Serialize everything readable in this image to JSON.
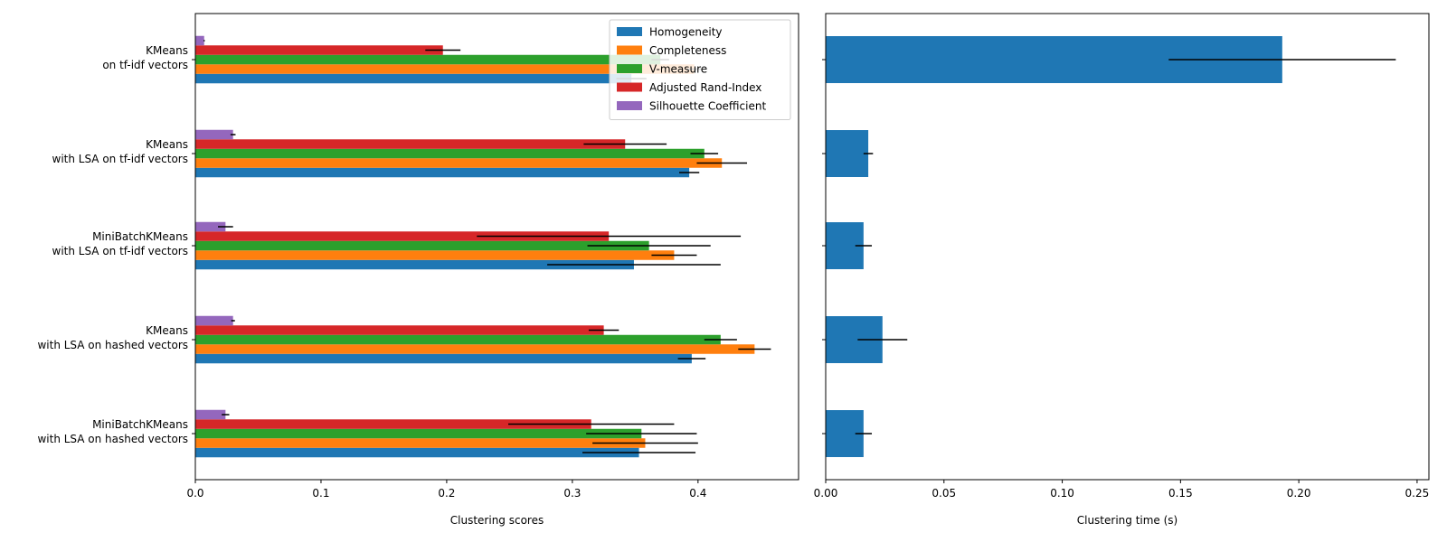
{
  "chart_data": [
    {
      "type": "bar",
      "orientation": "horizontal",
      "xlabel": "Clustering scores",
      "ylabel": "",
      "xlim": [
        0,
        0.48
      ],
      "xticks": [
        0.0,
        0.1,
        0.2,
        0.3,
        0.4
      ],
      "xtick_labels": [
        "0.0",
        "0.1",
        "0.2",
        "0.3",
        "0.4"
      ],
      "grid": false,
      "legend_position": "top-right",
      "categories": [
        [
          "KMeans",
          "on tf-idf vectors"
        ],
        [
          "KMeans",
          "with LSA on tf-idf vectors"
        ],
        [
          "MiniBatchKMeans",
          "with LSA on tf-idf vectors"
        ],
        [
          "KMeans",
          "with LSA on hashed vectors"
        ],
        [
          "MiniBatchKMeans",
          "with LSA on hashed vectors"
        ]
      ],
      "series": [
        {
          "name": "Homogeneity",
          "color": "#1f77b4",
          "values": [
            0.347,
            0.393,
            0.349,
            0.395,
            0.353
          ],
          "errors": [
            0.012,
            0.008,
            0.069,
            0.011,
            0.045
          ]
        },
        {
          "name": "Completeness",
          "color": "#ff7f0e",
          "values": [
            0.397,
            0.419,
            0.381,
            0.445,
            0.358
          ],
          "errors": [
            0.006,
            0.02,
            0.018,
            0.013,
            0.042
          ]
        },
        {
          "name": "V-measure",
          "color": "#2ca02c",
          "values": [
            0.37,
            0.405,
            0.361,
            0.418,
            0.355
          ],
          "errors": [
            0.007,
            0.011,
            0.049,
            0.013,
            0.044
          ]
        },
        {
          "name": "Adjusted Rand-Index",
          "color": "#d62728",
          "values": [
            0.197,
            0.342,
            0.329,
            0.325,
            0.315
          ],
          "errors": [
            0.014,
            0.033,
            0.105,
            0.012,
            0.066
          ]
        },
        {
          "name": "Silhouette Coefficient",
          "color": "#9467bd",
          "values": [
            0.007,
            0.03,
            0.024,
            0.03,
            0.024
          ],
          "errors": [
            0.0005,
            0.002,
            0.006,
            0.0015,
            0.003
          ]
        }
      ]
    },
    {
      "type": "bar",
      "orientation": "horizontal",
      "xlabel": "Clustering time (s)",
      "ylabel": "",
      "xlim": [
        0,
        0.255
      ],
      "xticks": [
        0.0,
        0.05,
        0.1,
        0.15,
        0.2,
        0.25
      ],
      "xtick_labels": [
        "0.00",
        "0.05",
        "0.10",
        "0.15",
        "0.20",
        "0.25"
      ],
      "grid": false,
      "series": [
        {
          "color": "#1f77b4",
          "values": [
            0.193,
            0.018,
            0.016,
            0.024,
            0.016
          ],
          "errors": [
            0.048,
            0.002,
            0.0035,
            0.0105,
            0.0035
          ]
        }
      ]
    }
  ]
}
